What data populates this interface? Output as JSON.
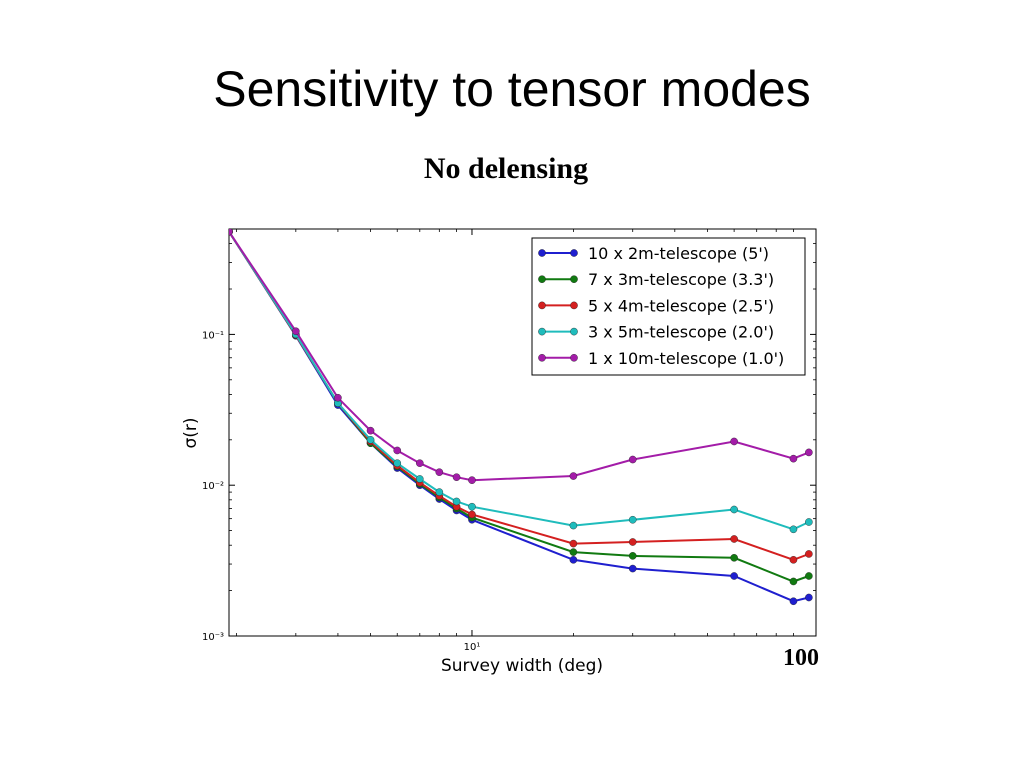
{
  "slide": {
    "title": "Sensitivity to tensor modes",
    "subtitle": "No delensing",
    "corner_label": "100"
  },
  "chart_data": {
    "type": "line",
    "xlabel": "Survey width (deg)",
    "ylabel": "σ(r)",
    "x_scale": "log",
    "y_scale": "log",
    "xlim": [
      1.9,
      105
    ],
    "ylim": [
      0.001,
      0.5
    ],
    "x_ticks": [
      {
        "value": 10,
        "label": "10¹"
      }
    ],
    "y_ticks": [
      {
        "value": 0.1,
        "label": "10⁻¹"
      },
      {
        "value": 0.01,
        "label": "10⁻²"
      },
      {
        "value": 0.001,
        "label": "10⁻³"
      }
    ],
    "grid": false,
    "legend_position": "top-right",
    "x": [
      1.9,
      3,
      4,
      5,
      6,
      7,
      8,
      9,
      10,
      20,
      30,
      60,
      90,
      100
    ],
    "series": [
      {
        "name": "10 x 2m-telescope (5')",
        "color": "#1f1fcf",
        "values": [
          0.48,
          0.098,
          0.034,
          0.019,
          0.013,
          0.01,
          0.0081,
          0.0068,
          0.0059,
          0.0032,
          0.0028,
          0.0025,
          0.0017,
          0.0018
        ]
      },
      {
        "name": "7 x 3m-telescope (3.3')",
        "color": "#117a11",
        "values": [
          0.48,
          0.099,
          0.035,
          0.019,
          0.0133,
          0.0102,
          0.0083,
          0.007,
          0.0061,
          0.0036,
          0.0034,
          0.0033,
          0.0023,
          0.0025
        ]
      },
      {
        "name": "5 x 4m-telescope (2.5')",
        "color": "#d42020",
        "values": [
          0.48,
          0.099,
          0.035,
          0.0195,
          0.0135,
          0.0104,
          0.0085,
          0.0072,
          0.0064,
          0.0041,
          0.0042,
          0.0044,
          0.0032,
          0.0035
        ]
      },
      {
        "name": "3 x 5m-telescope (2.0')",
        "color": "#1fbcbc",
        "values": [
          0.48,
          0.1,
          0.035,
          0.02,
          0.014,
          0.011,
          0.009,
          0.0078,
          0.0072,
          0.0054,
          0.0059,
          0.0069,
          0.0051,
          0.0057
        ]
      },
      {
        "name": "1 x 10m-telescope (1.0')",
        "color": "#a31ca8",
        "values": [
          0.48,
          0.105,
          0.038,
          0.023,
          0.017,
          0.014,
          0.0122,
          0.0113,
          0.0108,
          0.0115,
          0.0148,
          0.0195,
          0.015,
          0.0165
        ]
      }
    ]
  }
}
